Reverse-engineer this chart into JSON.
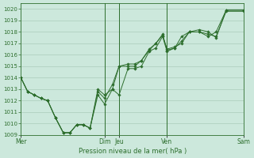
{
  "background_color": "#cce8dc",
  "grid_color": "#aaccba",
  "line_color": "#2d6e2d",
  "marker_color": "#2d6e2d",
  "xlabel_text": "Pression niveau de la mer( hPa )",
  "ylim": [
    1009,
    1020.5
  ],
  "yticks": [
    1009,
    1010,
    1011,
    1012,
    1013,
    1014,
    1015,
    1016,
    1017,
    1018,
    1019,
    1020
  ],
  "day_labels": [
    "Mer",
    "Dim",
    "Jeu",
    "Ven",
    "Sam"
  ],
  "day_positions": [
    0.0,
    0.375,
    0.44,
    0.655,
    1.0
  ],
  "series": [
    {
      "x": [
        0.0,
        0.03,
        0.06,
        0.09,
        0.12,
        0.155,
        0.19,
        0.22,
        0.25,
        0.28,
        0.31,
        0.345,
        0.375,
        0.41,
        0.44,
        0.48,
        0.51,
        0.54,
        0.575,
        0.605,
        0.635,
        0.655,
        0.69,
        0.72,
        0.755,
        0.8,
        0.84,
        0.875,
        0.92,
        1.0
      ],
      "y": [
        1014.0,
        1012.8,
        1012.5,
        1012.2,
        1012.0,
        1010.5,
        1009.2,
        1009.2,
        1009.9,
        1009.9,
        1009.6,
        1012.5,
        1011.7,
        1013.0,
        1012.5,
        1014.8,
        1014.8,
        1015.0,
        1016.3,
        1016.6,
        1017.6,
        1016.3,
        1016.6,
        1017.6,
        1018.0,
        1018.0,
        1017.6,
        1018.0,
        1019.9,
        1019.9
      ]
    },
    {
      "x": [
        0.0,
        0.03,
        0.06,
        0.09,
        0.12,
        0.155,
        0.19,
        0.22,
        0.25,
        0.28,
        0.31,
        0.345,
        0.375,
        0.41,
        0.44,
        0.48,
        0.51,
        0.54,
        0.575,
        0.605,
        0.635,
        0.655,
        0.69,
        0.72,
        0.755,
        0.8,
        0.84,
        0.875,
        0.92,
        1.0
      ],
      "y": [
        1014.0,
        1012.8,
        1012.5,
        1012.2,
        1012.0,
        1010.5,
        1009.2,
        1009.2,
        1009.9,
        1009.9,
        1009.6,
        1012.8,
        1012.2,
        1013.4,
        1015.0,
        1015.2,
        1015.2,
        1015.5,
        1016.4,
        1017.0,
        1017.7,
        1016.5,
        1016.7,
        1017.0,
        1018.0,
        1018.0,
        1017.8,
        1017.6,
        1019.8,
        1019.8
      ]
    },
    {
      "x": [
        0.0,
        0.03,
        0.06,
        0.09,
        0.12,
        0.155,
        0.19,
        0.22,
        0.25,
        0.28,
        0.31,
        0.345,
        0.375,
        0.41,
        0.44,
        0.48,
        0.51,
        0.54,
        0.575,
        0.605,
        0.635,
        0.655,
        0.69,
        0.72,
        0.755,
        0.8,
        0.84,
        0.875,
        0.92,
        1.0
      ],
      "y": [
        1014.0,
        1012.8,
        1012.5,
        1012.2,
        1012.0,
        1010.5,
        1009.2,
        1009.2,
        1009.9,
        1009.9,
        1009.6,
        1013.0,
        1012.5,
        1013.0,
        1015.0,
        1015.0,
        1015.0,
        1015.5,
        1016.5,
        1017.0,
        1017.8,
        1016.4,
        1016.6,
        1017.2,
        1018.0,
        1018.2,
        1018.0,
        1017.5,
        1019.9,
        1019.9
      ]
    }
  ]
}
